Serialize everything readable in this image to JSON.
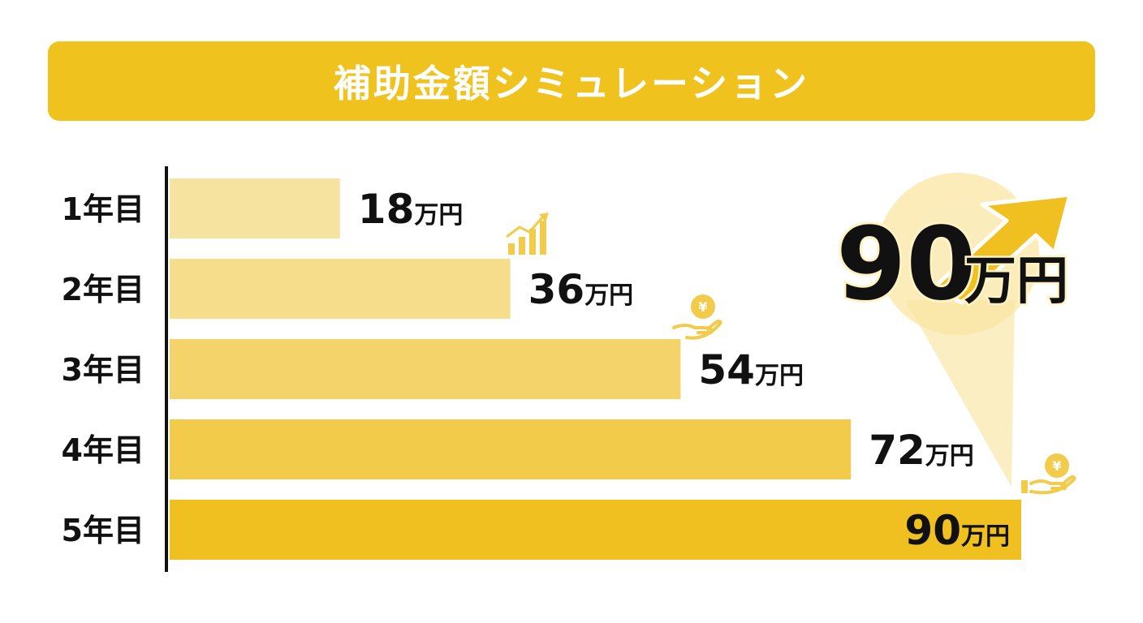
{
  "chart_data": {
    "type": "bar",
    "orientation": "horizontal",
    "title": "補助金額シミュレーション",
    "categories": [
      "1年目",
      "2年目",
      "3年目",
      "4年目",
      "5年目"
    ],
    "values": [
      18,
      36,
      54,
      72,
      90
    ],
    "value_labels": [
      {
        "number": "18",
        "unit": "万円"
      },
      {
        "number": "36",
        "unit": "万円"
      },
      {
        "number": "54",
        "unit": "万円"
      },
      {
        "number": "72",
        "unit": "万円"
      },
      {
        "number": "90",
        "unit": "万円"
      }
    ],
    "xlim": [
      0,
      90
    ],
    "grid": false,
    "bar_colors": [
      "#f7e3a0",
      "#f6dd8b",
      "#f4d46a",
      "#f2cb4a",
      "#efc01f"
    ],
    "callout": {
      "number": "90",
      "unit": "万円"
    }
  },
  "icons": {
    "growth": "growth-chart-icon",
    "coin_hand": "yen-coin-hand-icon",
    "arrow": "up-trend-arrow-icon"
  },
  "colors": {
    "accent": "#f0c21e",
    "axis": "#111111",
    "text": "#111111"
  }
}
